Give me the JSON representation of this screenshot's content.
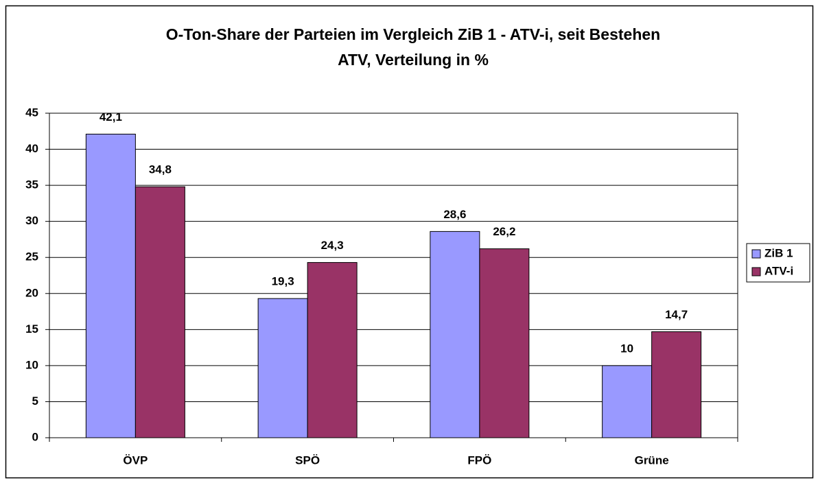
{
  "chart_data": {
    "type": "bar",
    "title": [
      "O-Ton-Share der Parteien im Vergleich ZiB 1 - ATV-i, seit Bestehen",
      "ATV, Verteilung in %"
    ],
    "categories": [
      "ÖVP",
      "SPÖ",
      "FPÖ",
      "Grüne"
    ],
    "series": [
      {
        "name": "ZiB 1",
        "color": "#9999ff",
        "values": [
          42.1,
          19.3,
          28.6,
          10
        ],
        "value_labels": [
          "42,1",
          "19,3",
          "28,6",
          "10"
        ]
      },
      {
        "name": "ATV-i",
        "color": "#993366",
        "values": [
          34.8,
          24.3,
          26.2,
          14.7
        ],
        "value_labels": [
          "34,8",
          "24,3",
          "26,2",
          "14,7"
        ]
      }
    ],
    "ylim": [
      0,
      45
    ],
    "yticks": [
      0,
      5,
      10,
      15,
      20,
      25,
      30,
      35,
      40,
      45
    ],
    "grid": true,
    "legend": "right"
  }
}
